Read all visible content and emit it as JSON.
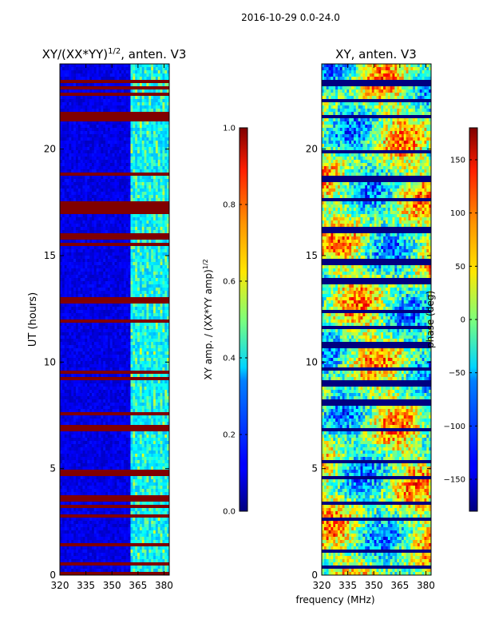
{
  "figure": {
    "suptitle": "2016-10-29 0.0-24.0",
    "xlabel": "frequency (MHz)"
  },
  "chart_data": [
    {
      "type": "heatmap",
      "title": "XY/(XX*YY)",
      "title_exponent": "1/2",
      "title_suffix": ", anten. V3",
      "ylabel": "UT (hours)",
      "xlim": [
        320,
        383
      ],
      "ylim": [
        0,
        24
      ],
      "xticks": [
        320,
        335,
        350,
        365,
        380
      ],
      "yticks": [
        0,
        5,
        10,
        15,
        20
      ],
      "colorbar": {
        "label": "XY amp. / (XX*YY amp)",
        "label_exponent": "1/2",
        "range": [
          0.0,
          1.0
        ],
        "ticks": [
          "0.0",
          "0.2",
          "0.4",
          "0.6",
          "0.8",
          "1.0"
        ],
        "colormap": "jet"
      },
      "features": {
        "low_band_level": 0.05,
        "high_band_start_mhz": 361,
        "high_band_level_range": [
          0.3,
          0.6
        ],
        "flagged_value": 1.0,
        "flagged_ut_hours": [
          0.1,
          0.5,
          1.4,
          2.8,
          3.2,
          3.6,
          4.8,
          6.9,
          7.6,
          9.2,
          9.5,
          11.9,
          12.9,
          15.5,
          15.8,
          16.0,
          17.1,
          17.4,
          18.8,
          21.4,
          21.6,
          22.6,
          22.9,
          23.2
        ]
      }
    },
    {
      "type": "heatmap",
      "title": "XY, anten. V3",
      "ylabel": "",
      "xlim": [
        320,
        383
      ],
      "ylim": [
        0,
        24
      ],
      "xticks": [
        320,
        335,
        350,
        365,
        380
      ],
      "yticks": [
        0,
        5,
        10,
        15,
        20
      ],
      "colorbar": {
        "label": "phase (deg)",
        "range": [
          -180,
          180
        ],
        "ticks": [
          "−150",
          "−100",
          "−50",
          "0",
          "50",
          "100",
          "150"
        ],
        "colormap": "jet"
      },
      "features": {
        "phase_noise_deg": 60,
        "flagged_value": -180,
        "flagged_ut_hours": [
          0.4,
          1.1,
          2.6,
          3.4,
          4.6,
          5.3,
          6.8,
          8.1,
          9.0,
          9.7,
          10.8,
          11.6,
          12.4,
          13.8,
          14.7,
          16.2,
          17.6,
          18.6,
          19.9,
          21.5,
          22.3,
          23.1
        ]
      }
    }
  ]
}
